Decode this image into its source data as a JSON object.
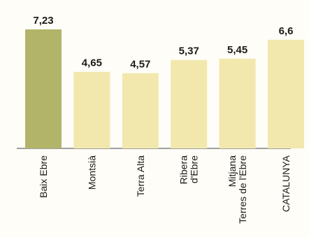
{
  "chart_data": {
    "type": "bar",
    "categories": [
      [
        "Baix Ebre"
      ],
      [
        "Montsià"
      ],
      [
        "Terra Alta"
      ],
      [
        "Ribera",
        "d'Ebre"
      ],
      [
        "Mitjana",
        "Terres de l'Ebre"
      ],
      [
        "CATALUNYA"
      ]
    ],
    "values": [
      7.23,
      4.65,
      4.57,
      5.37,
      5.45,
      6.6
    ],
    "value_labels": [
      "7,23",
      "4,65",
      "4,57",
      "5,37",
      "5,45",
      "6,6"
    ],
    "ylim": [
      0,
      8
    ],
    "grid": false,
    "colors": {
      "highlight": "#b2b46a",
      "bar": "#f2e8ad",
      "axis": "#6a6a6a",
      "text": "#1c1a17"
    },
    "highlight_index": 0
  }
}
